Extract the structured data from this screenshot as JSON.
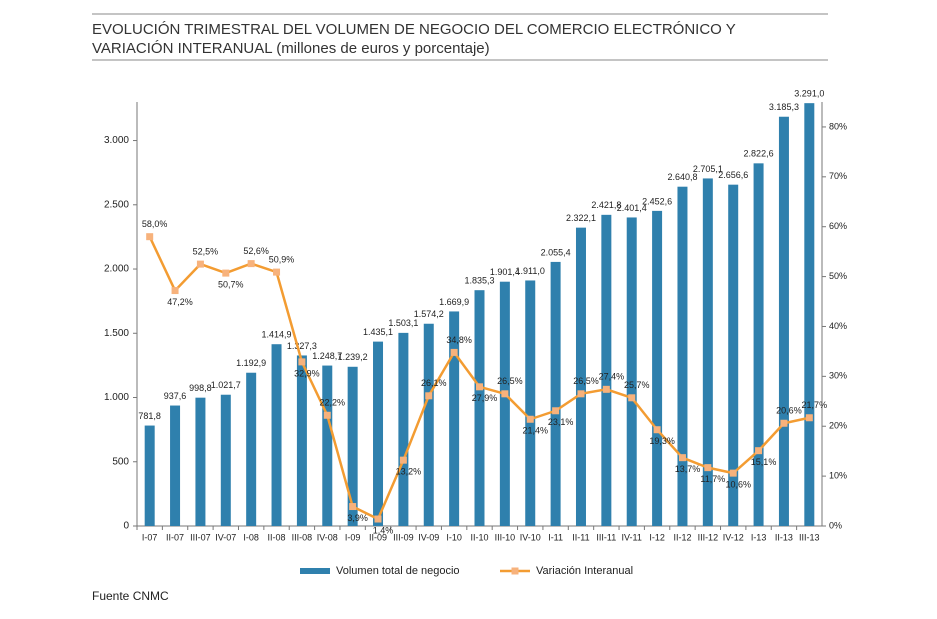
{
  "chart_data": {
    "type": "bar",
    "title": [
      "EVOLUCIÓN TRIMESTRAL DEL VOLUMEN DE NEGOCIO DEL COMERCIO ELECTRÓNICO Y",
      "VARIACIÓN INTERANUAL (millones de euros y porcentaje)"
    ],
    "source": "Fuente CNMC",
    "categories": [
      "I-07",
      "II-07",
      "III-07",
      "IV-07",
      "I-08",
      "II-08",
      "III-08",
      "IV-08",
      "I-09",
      "II-09",
      "III-09",
      "IV-09",
      "I-10",
      "II-10",
      "III-10",
      "IV-10",
      "I-11",
      "II-11",
      "III-11",
      "IV-11",
      "I-12",
      "II-12",
      "III-12",
      "IV-12",
      "I-13",
      "II-13",
      "III-13"
    ],
    "series": [
      {
        "name": "Volumen total de negocio",
        "type": "bar",
        "color": "#2f80ad",
        "values": [
          781.8,
          937.6,
          998.8,
          1021.7,
          1192.9,
          1414.9,
          1327.3,
          1248.7,
          1239.2,
          1435.1,
          1503.1,
          1574.2,
          1669.9,
          1835.3,
          1901.4,
          1911.0,
          2055.4,
          2322.1,
          2421.8,
          2401.4,
          2452.6,
          2640.8,
          2705.1,
          2656.6,
          2822.6,
          3185.3,
          3291.0
        ],
        "value_labels": [
          "781,8",
          "937,6",
          "998,8",
          "1.021,7",
          "1.192,9",
          "1.414,9",
          "1.327,3",
          "1.248,7",
          "1.239,2",
          "1.435,1",
          "1.503,1",
          "1.574,2",
          "1.669,9",
          "1.835,3",
          "1.901,4",
          "1.911,0",
          "2.055,4",
          "2.322,1",
          "2.421,8",
          "2.401,4",
          "2.452,6",
          "2.640,8",
          "2.705,1",
          "2.656,6",
          "2.822,6",
          "3.185,3",
          "3.291,0"
        ]
      },
      {
        "name": "Variación Interanual",
        "type": "line",
        "axis": "y2",
        "color": "#f39c32",
        "marker_color": "#f7b27c",
        "values": [
          58.0,
          47.2,
          52.5,
          50.7,
          52.6,
          50.9,
          32.9,
          22.2,
          3.9,
          1.4,
          13.2,
          26.1,
          34.8,
          27.9,
          26.5,
          21.4,
          23.1,
          26.5,
          27.4,
          25.7,
          19.3,
          13.7,
          11.7,
          10.6,
          15.1,
          20.6,
          21.7
        ],
        "value_labels": [
          "58,0%",
          "47,2%",
          "52,5%",
          "50,7%",
          "52,6%",
          "50,9%",
          "32,9%",
          "22,2%",
          "3,9%",
          "1,4%",
          "13,2%",
          "26,1%",
          "34,8%",
          "27,9%",
          "26,5%",
          "21,4%",
          "23,1%",
          "26,5%",
          "27,4%",
          "25,7%",
          "19,3%",
          "13,7%",
          "11,7%",
          "10,6%",
          "15,1%",
          "20,6%",
          "21,7%"
        ]
      }
    ],
    "ylim": [
      0,
      3300
    ],
    "yticks": [
      0,
      500,
      {
        "value": 1000,
        "label": "1.000"
      },
      {
        "value": 1500,
        "label": "1.500"
      },
      {
        "value": 2000,
        "label": "2.000"
      },
      {
        "value": 2500,
        "label": "2.500"
      },
      {
        "value": 3000,
        "label": "3.000"
      }
    ],
    "y2lim": [
      0,
      85
    ],
    "y2ticks": [
      {
        "value": 0,
        "label": "0%"
      },
      {
        "value": 10,
        "label": "10%"
      },
      {
        "value": 20,
        "label": "20%"
      },
      {
        "value": 30,
        "label": "30%"
      },
      {
        "value": 40,
        "label": "40%"
      },
      {
        "value": 50,
        "label": "50%"
      },
      {
        "value": 60,
        "label": "60%"
      },
      {
        "value": 70,
        "label": "70%"
      },
      {
        "value": 80,
        "label": "80%"
      }
    ],
    "legend": "bottom"
  }
}
